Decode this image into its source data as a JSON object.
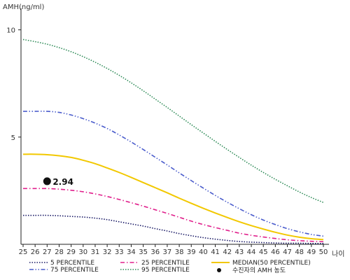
{
  "chart_data": {
    "type": "line",
    "ylabel": "AMH(ng/ml)",
    "xlabel": "나이",
    "x": [
      25,
      26,
      27,
      28,
      29,
      30,
      31,
      32,
      33,
      34,
      35,
      36,
      37,
      38,
      39,
      40,
      41,
      42,
      43,
      44,
      45,
      46,
      47,
      48,
      49,
      50
    ],
    "ylim": [
      0,
      11
    ],
    "yticks": [
      5,
      10
    ],
    "grid": false,
    "legend_position": "bottom",
    "series": [
      {
        "name": "5 PERCENTILE",
        "color": "#1a1a66",
        "dash": "dotted",
        "values": [
          1.35,
          1.35,
          1.35,
          1.33,
          1.3,
          1.27,
          1.22,
          1.15,
          1.05,
          0.95,
          0.85,
          0.73,
          0.62,
          0.5,
          0.4,
          0.31,
          0.24,
          0.18,
          0.13,
          0.1,
          0.08,
          0.06,
          0.05,
          0.05,
          0.04,
          0.04
        ]
      },
      {
        "name": "25 PERCENTILE",
        "color": "#e0208c",
        "dash": "dashdot",
        "values": [
          2.6,
          2.6,
          2.6,
          2.57,
          2.52,
          2.45,
          2.35,
          2.23,
          2.09,
          1.94,
          1.78,
          1.61,
          1.44,
          1.26,
          1.08,
          0.92,
          0.78,
          0.65,
          0.52,
          0.42,
          0.34,
          0.27,
          0.21,
          0.17,
          0.14,
          0.12
        ]
      },
      {
        "name": "MEDIAN(50 PERCENTILE)",
        "color": "#f2c800",
        "dash": "solid",
        "values": [
          4.2,
          4.2,
          4.18,
          4.13,
          4.05,
          3.92,
          3.76,
          3.56,
          3.35,
          3.12,
          2.88,
          2.64,
          2.4,
          2.15,
          1.91,
          1.68,
          1.46,
          1.25,
          1.05,
          0.87,
          0.71,
          0.56,
          0.43,
          0.33,
          0.26,
          0.22
        ]
      },
      {
        "name": "75 PERCENTILE",
        "color": "#4a5ccc",
        "dash": "dashdotdot",
        "values": [
          6.2,
          6.2,
          6.2,
          6.15,
          6.03,
          5.86,
          5.65,
          5.4,
          5.1,
          4.77,
          4.42,
          4.06,
          3.7,
          3.33,
          2.97,
          2.62,
          2.28,
          1.96,
          1.66,
          1.38,
          1.13,
          0.92,
          0.73,
          0.58,
          0.46,
          0.38
        ]
      },
      {
        "name": "95 PERCENTILE",
        "color": "#2e8b57",
        "dash": "dotted",
        "values": [
          9.55,
          9.45,
          9.33,
          9.17,
          8.98,
          8.75,
          8.49,
          8.2,
          7.88,
          7.53,
          7.16,
          6.77,
          6.38,
          5.98,
          5.58,
          5.19,
          4.8,
          4.42,
          4.05,
          3.69,
          3.35,
          3.03,
          2.73,
          2.44,
          2.18,
          1.95
        ]
      }
    ],
    "marker": {
      "x": 27,
      "y": 2.94,
      "label": "2.94",
      "legend": "수진자의 AMH 농도"
    }
  }
}
